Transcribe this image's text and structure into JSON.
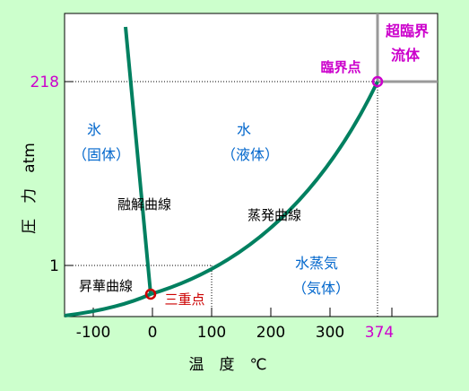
{
  "diagram": {
    "axes": {
      "x_label": "温　度　℃",
      "y_label": "圧　力　atm",
      "x_ticks": [
        "-100",
        "0",
        "100",
        "200",
        "300",
        "374"
      ],
      "y_ticks": [
        "1",
        "218"
      ]
    },
    "regions": {
      "solid": [
        "氷",
        "（固体）"
      ],
      "liquid": [
        "水",
        "（液体）"
      ],
      "gas": [
        "水蒸気",
        "（気体）"
      ],
      "supercritical": [
        "超臨界",
        "流体"
      ]
    },
    "curves": {
      "melting": "融解曲線",
      "evaporation": "蒸発曲線",
      "sublimation": "昇華曲線"
    },
    "points": {
      "triple": "三重点",
      "critical": "臨界点"
    },
    "colors": {
      "background": "#ccffcc",
      "plot_bg": "#ffffff",
      "curve": "#008060",
      "region_text": "#0066cc",
      "highlight": "#cc00cc",
      "triple_point": "#cc0000",
      "axis": "#000000"
    }
  }
}
